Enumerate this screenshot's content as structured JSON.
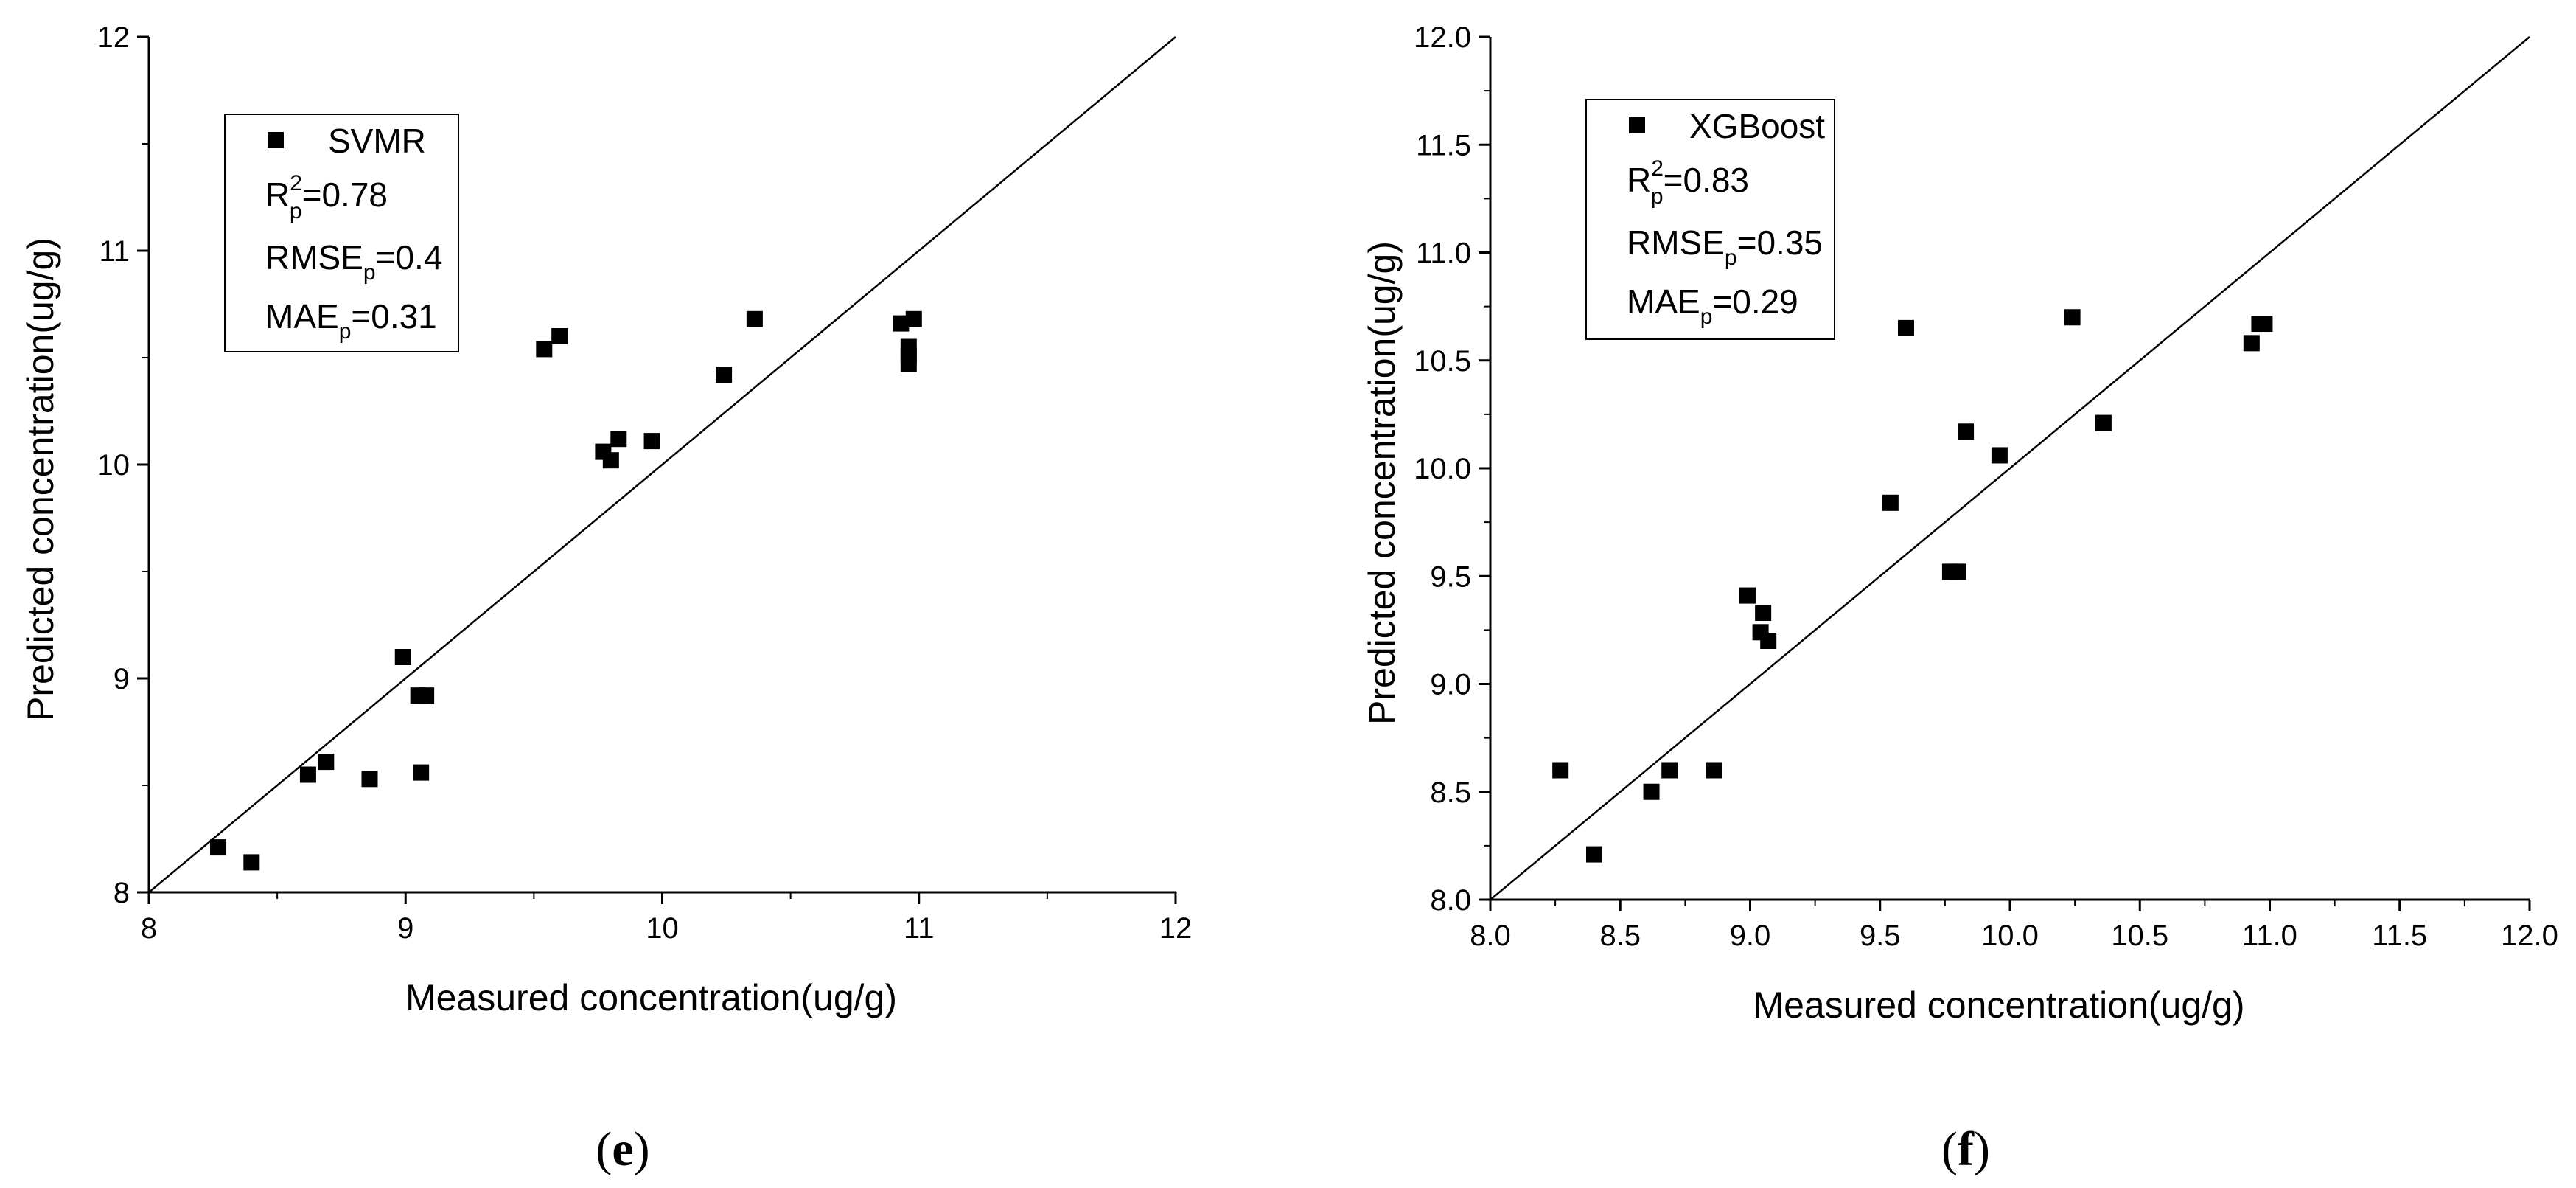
{
  "chart_data": [
    {
      "type": "scatter",
      "panel_label": {
        "open": "(",
        "letter": "e",
        "close": ")"
      },
      "xlabel": "Measured concentration(ug/g)",
      "ylabel": "Predicted concentration(ug/g)",
      "xlim": [
        8,
        12
      ],
      "ylim": [
        8,
        12
      ],
      "xticks": [
        "8",
        "9",
        "10",
        "11",
        "12"
      ],
      "yticks": [
        "8",
        "9",
        "10",
        "11",
        "12"
      ],
      "identity_line": true,
      "legend": {
        "series": "SVMR",
        "r2": {
          "base": "R",
          "sup": "2",
          "sub": "p",
          "value": "=0.78"
        },
        "rmse": {
          "base": "RMSE",
          "sub": "p",
          "value": "=0.4"
        },
        "mae": {
          "base": "MAE",
          "sub": "p",
          "value": "=0.31"
        }
      },
      "series": [
        {
          "name": "SVMR",
          "points": [
            [
              8.27,
              8.21
            ],
            [
              8.4,
              8.14
            ],
            [
              8.62,
              8.55
            ],
            [
              8.69,
              8.61
            ],
            [
              8.86,
              8.53
            ],
            [
              8.99,
              9.1
            ],
            [
              9.05,
              8.92
            ],
            [
              9.08,
              8.92
            ],
            [
              9.06,
              8.56
            ],
            [
              9.54,
              10.54
            ],
            [
              9.6,
              10.6
            ],
            [
              9.77,
              10.06
            ],
            [
              9.8,
              10.02
            ],
            [
              9.83,
              10.12
            ],
            [
              9.96,
              10.11
            ],
            [
              10.24,
              10.42
            ],
            [
              10.36,
              10.68
            ],
            [
              10.93,
              10.66
            ],
            [
              10.98,
              10.68
            ],
            [
              10.96,
              10.55
            ],
            [
              10.96,
              10.51
            ],
            [
              10.96,
              10.47
            ]
          ]
        }
      ]
    },
    {
      "type": "scatter",
      "panel_label": {
        "open": "(",
        "letter": "f",
        "close": ")"
      },
      "xlabel": "Measured concentration(ug/g)",
      "ylabel": "Predicted concentration(ug/g)",
      "xlim": [
        8.0,
        12.0
      ],
      "ylim": [
        8.0,
        12.0
      ],
      "xticks": [
        "8.0",
        "8.5",
        "9.0",
        "9.5",
        "10.0",
        "10.5",
        "11.0",
        "11.5",
        "12.0"
      ],
      "yticks": [
        "8.0",
        "8.5",
        "9.0",
        "9.5",
        "10.0",
        "10.5",
        "11.0",
        "11.5",
        "12.0"
      ],
      "identity_line": true,
      "legend": {
        "series": "XGBoost",
        "r2": {
          "base": "R",
          "sup": "2",
          "sub": "p",
          "value": "=0.83"
        },
        "rmse": {
          "base": "RMSE",
          "sub": "p",
          "value": "=0.35"
        },
        "mae": {
          "base": "MAE",
          "sub": "p",
          "value": "=0.29"
        }
      },
      "series": [
        {
          "name": "XGBoost",
          "points": [
            [
              8.27,
              8.6
            ],
            [
              8.4,
              8.21
            ],
            [
              8.62,
              8.5
            ],
            [
              8.69,
              8.6
            ],
            [
              8.86,
              8.6
            ],
            [
              8.99,
              9.41
            ],
            [
              9.04,
              9.24
            ],
            [
              9.05,
              9.33
            ],
            [
              9.07,
              9.2
            ],
            [
              9.54,
              9.84
            ],
            [
              9.6,
              10.65
            ],
            [
              9.77,
              9.52
            ],
            [
              9.8,
              9.52
            ],
            [
              9.83,
              10.17
            ],
            [
              9.96,
              10.06
            ],
            [
              10.24,
              10.7
            ],
            [
              10.36,
              10.21
            ],
            [
              10.93,
              10.58
            ],
            [
              10.96,
              10.67
            ],
            [
              10.98,
              10.67
            ]
          ]
        }
      ]
    }
  ]
}
